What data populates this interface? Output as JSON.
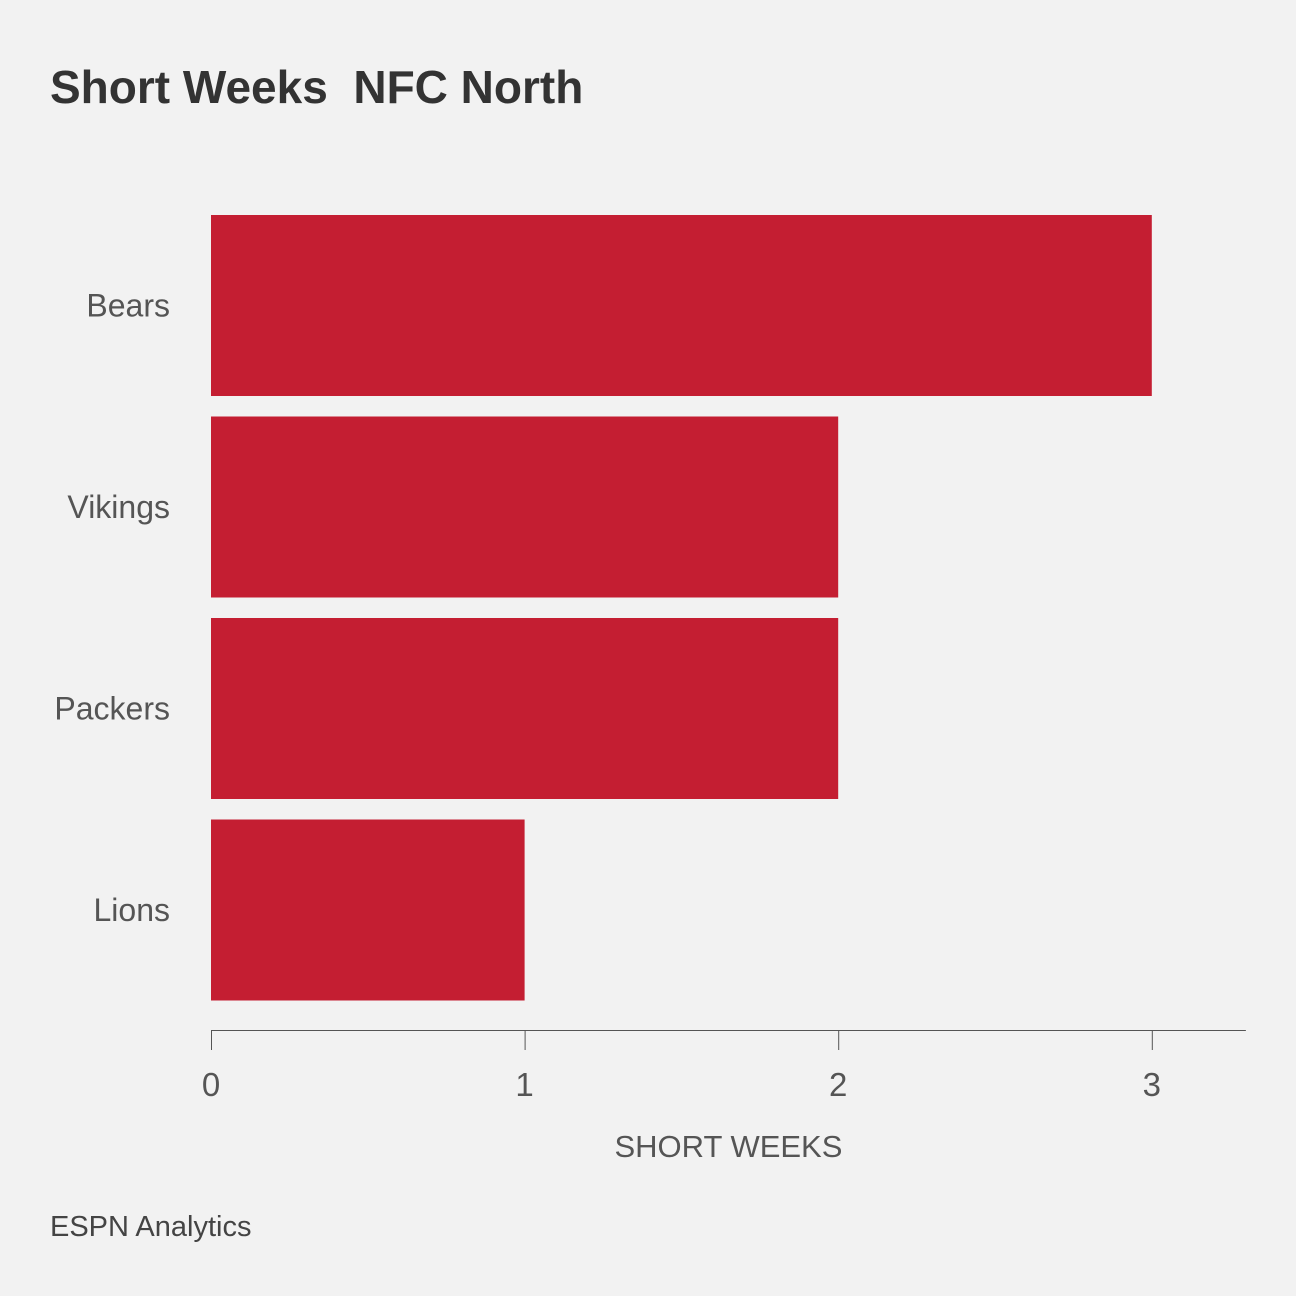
{
  "chart_data": {
    "type": "bar",
    "orientation": "horizontal",
    "title": "Short Weeks  NFC North",
    "categories": [
      "Bears",
      "Vikings",
      "Packers",
      "Lions"
    ],
    "series": [
      {
        "values": [
          3,
          2,
          2,
          1
        ],
        "color": "#c41e32"
      }
    ],
    "xlabel": "SHORT WEEKS",
    "ylabel": "",
    "xticks": [
      0,
      1,
      2,
      3
    ],
    "xlim": [
      0,
      3.3
    ],
    "grid": false,
    "legend": "none"
  },
  "footer": {
    "source": "ESPN Analytics"
  }
}
